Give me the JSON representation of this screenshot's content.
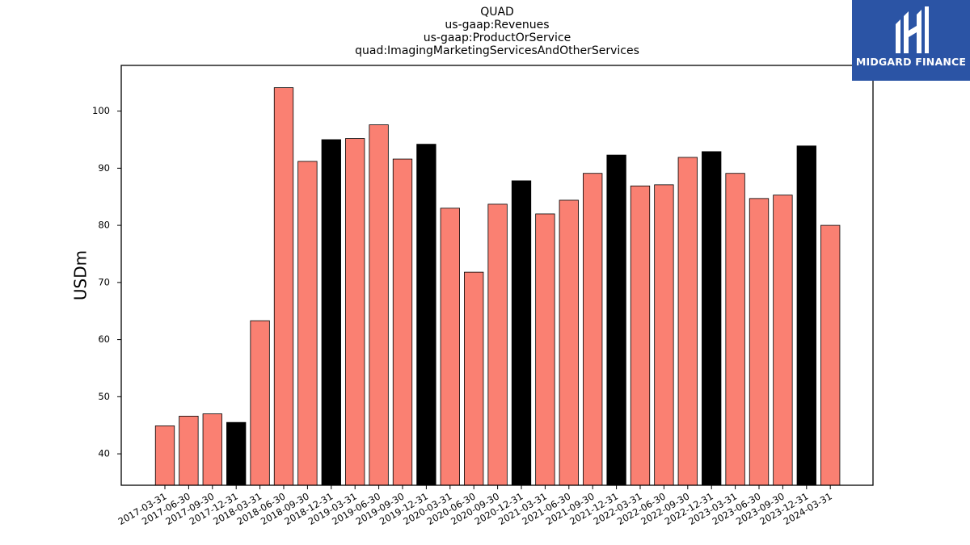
{
  "header": {
    "title_lines": [
      "QUAD",
      "us-gaap:Revenues",
      "us-gaap:ProductOrService",
      "quad:ImagingMarketingServicesAndOtherServices"
    ]
  },
  "logo": {
    "text": "MIDGARD FINANCE",
    "background": "#2b54a5"
  },
  "colors": {
    "quarter": "#fa8072",
    "year_end": "#000000"
  },
  "chart_data": {
    "type": "bar",
    "ylabel": "USDm",
    "ylim": [
      34.5,
      108
    ],
    "yticks": [
      40,
      50,
      60,
      70,
      80,
      90,
      100
    ],
    "categories": [
      "2017-03-31",
      "2017-06-30",
      "2017-09-30",
      "2017-12-31",
      "2018-03-31",
      "2018-06-30",
      "2018-09-30",
      "2018-12-31",
      "2019-03-31",
      "2019-06-30",
      "2019-09-30",
      "2019-12-31",
      "2020-03-31",
      "2020-06-30",
      "2020-09-30",
      "2020-12-31",
      "2021-03-31",
      "2021-06-30",
      "2021-09-30",
      "2021-12-31",
      "2022-03-31",
      "2022-06-30",
      "2022-09-30",
      "2022-12-31",
      "2023-03-31",
      "2023-06-30",
      "2023-09-30",
      "2023-12-31",
      "2024-03-31"
    ],
    "values": [
      44.9,
      46.6,
      47.0,
      45.5,
      63.3,
      104.1,
      91.2,
      95.0,
      95.2,
      97.6,
      91.6,
      94.2,
      83.0,
      71.8,
      83.7,
      87.8,
      82.0,
      84.4,
      89.1,
      92.3,
      86.9,
      87.1,
      91.9,
      92.9,
      89.1,
      84.7,
      85.3,
      93.9,
      80.0
    ],
    "grid": false,
    "legend": "none"
  }
}
